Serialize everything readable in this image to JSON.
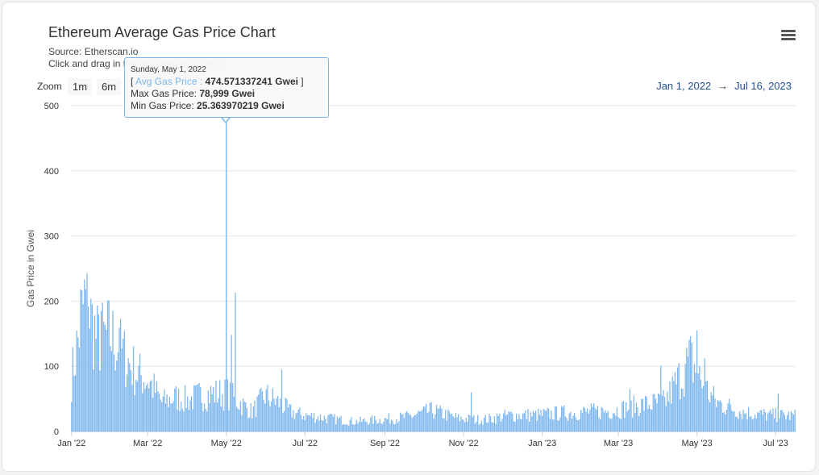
{
  "title": "Ethereum Average Gas Price Chart",
  "subtitle_source": "Source: Etherscan.io",
  "subtitle_hint": "Click and drag in the plot area to zoom in",
  "zoom": {
    "label": "Zoom",
    "buttons": [
      "1m",
      "6m"
    ]
  },
  "range": {
    "from": "Jan 1, 2022",
    "arrow": "→",
    "to": "Jul 16, 2023"
  },
  "tooltip": {
    "date": "Sunday, May 1, 2022",
    "avg_prefix": "[ ",
    "avg_label": "Avg Gas Price :",
    "avg_value": "474.571337241 Gwei",
    "avg_suffix": " ]",
    "max_label": "Max Gas Price:",
    "max_value": "78,999 Gwei",
    "min_label": "Min Gas Price:",
    "min_value": "25.363970219 Gwei"
  },
  "colors": {
    "series": "#7cb5ec",
    "grid": "#e6e6e6",
    "axis_text": "#333333"
  },
  "chart_data": {
    "type": "bar",
    "title": "Ethereum Average Gas Price Chart",
    "ylabel": "Gas Price in Gwei",
    "xlabel": "",
    "ylim": [
      0,
      500
    ],
    "y_ticks": [
      0,
      100,
      200,
      300,
      400,
      500
    ],
    "x_ticks": [
      "Jan '22",
      "Mar '22",
      "May '22",
      "Jul '22",
      "Sep '22",
      "Nov '22",
      "Jan '23",
      "Mar '23",
      "May '23",
      "Jul '23"
    ],
    "series_name": "Avg Gas Price",
    "start_date": "2022-01-01",
    "end_date": "2023-07-16",
    "daily_key_points": [
      {
        "day": 0,
        "value": 82
      },
      {
        "day": 5,
        "value": 140
      },
      {
        "day": 10,
        "value": 200
      },
      {
        "day": 14,
        "value": 178
      },
      {
        "day": 20,
        "value": 140
      },
      {
        "day": 30,
        "value": 148
      },
      {
        "day": 40,
        "value": 118
      },
      {
        "day": 50,
        "value": 90
      },
      {
        "day": 60,
        "value": 78
      },
      {
        "day": 70,
        "value": 45
      },
      {
        "day": 80,
        "value": 52
      },
      {
        "day": 90,
        "value": 48
      },
      {
        "day": 100,
        "value": 55
      },
      {
        "day": 110,
        "value": 58
      },
      {
        "day": 120,
        "value": 474.57
      },
      {
        "day": 121,
        "value": 58
      },
      {
        "day": 130,
        "value": 45
      },
      {
        "day": 140,
        "value": 30
      },
      {
        "day": 150,
        "value": 55
      },
      {
        "day": 160,
        "value": 45
      },
      {
        "day": 170,
        "value": 30
      },
      {
        "day": 180,
        "value": 25
      },
      {
        "day": 200,
        "value": 20
      },
      {
        "day": 220,
        "value": 15
      },
      {
        "day": 240,
        "value": 18
      },
      {
        "day": 260,
        "value": 22
      },
      {
        "day": 280,
        "value": 32
      },
      {
        "day": 300,
        "value": 20
      },
      {
        "day": 320,
        "value": 18
      },
      {
        "day": 340,
        "value": 25
      },
      {
        "day": 360,
        "value": 25
      },
      {
        "day": 380,
        "value": 28
      },
      {
        "day": 400,
        "value": 30
      },
      {
        "day": 420,
        "value": 32
      },
      {
        "day": 440,
        "value": 40
      },
      {
        "day": 460,
        "value": 45
      },
      {
        "day": 480,
        "value": 110
      },
      {
        "day": 490,
        "value": 70
      },
      {
        "day": 500,
        "value": 45
      },
      {
        "day": 520,
        "value": 30
      },
      {
        "day": 540,
        "value": 25
      },
      {
        "day": 561,
        "value": 24
      }
    ],
    "spikes": [
      {
        "day": 7,
        "value": 218
      },
      {
        "day": 13,
        "value": 192
      },
      {
        "day": 23,
        "value": 185
      },
      {
        "day": 37,
        "value": 159
      },
      {
        "day": 124,
        "value": 148
      },
      {
        "day": 127,
        "value": 213
      },
      {
        "day": 163,
        "value": 95
      },
      {
        "day": 310,
        "value": 60
      },
      {
        "day": 433,
        "value": 65
      },
      {
        "day": 457,
        "value": 101
      },
      {
        "day": 485,
        "value": 155
      },
      {
        "day": 491,
        "value": 112
      },
      {
        "day": 548,
        "value": 58
      }
    ]
  }
}
